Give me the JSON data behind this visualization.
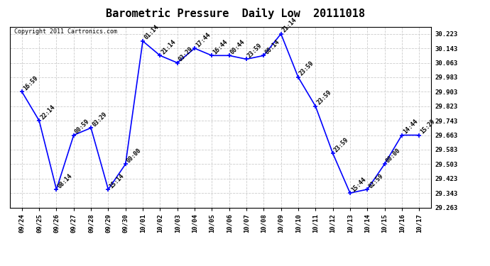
{
  "title": "Barometric Pressure  Daily Low  20111018",
  "copyright": "Copyright 2011 Cartronics.com",
  "x_labels": [
    "09/24",
    "09/25",
    "09/26",
    "09/27",
    "09/28",
    "09/29",
    "09/30",
    "10/01",
    "10/02",
    "10/03",
    "10/04",
    "10/05",
    "10/06",
    "10/07",
    "10/08",
    "10/09",
    "10/10",
    "10/11",
    "10/12",
    "10/13",
    "10/14",
    "10/15",
    "10/16",
    "10/17"
  ],
  "y_values": [
    29.903,
    29.743,
    29.363,
    29.663,
    29.703,
    29.363,
    29.503,
    30.183,
    30.103,
    30.063,
    30.143,
    30.103,
    30.103,
    30.083,
    30.103,
    30.223,
    29.983,
    29.823,
    29.563,
    29.343,
    29.363,
    29.503,
    29.663,
    29.663
  ],
  "point_labels": [
    "16:59",
    "22:14",
    "08:14",
    "00:59",
    "03:29",
    "15:14",
    "00:00",
    "01:14",
    "21:14",
    "03:29",
    "17:44",
    "16:44",
    "00:44",
    "23:59",
    "00:14",
    "21:14",
    "23:59",
    "23:59",
    "23:59",
    "15:44",
    "02:59",
    "00:00",
    "14:44",
    "15:29"
  ],
  "ylim_min": 29.263,
  "ylim_max": 30.263,
  "yticks": [
    29.263,
    29.343,
    29.423,
    29.503,
    29.583,
    29.663,
    29.743,
    29.823,
    29.903,
    29.983,
    30.063,
    30.143,
    30.223
  ],
  "line_color": "blue",
  "marker_color": "blue",
  "bg_color": "#ffffff",
  "grid_color": "#cccccc",
  "title_fontsize": 11,
  "label_fontsize": 6.5,
  "point_label_fontsize": 6,
  "copyright_fontsize": 6
}
